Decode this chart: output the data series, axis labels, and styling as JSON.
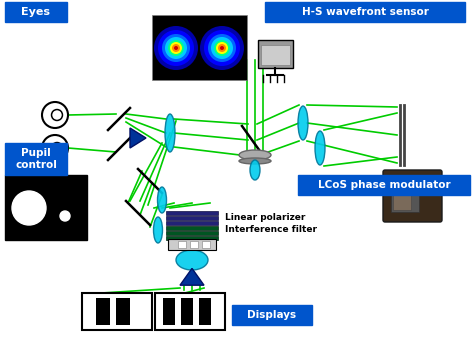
{
  "bg_color": "#ffffff",
  "label_bg": "#0055cc",
  "label_fg": "#ffffff",
  "beam_color": "#00cc00",
  "lens_color": "#00ccee",
  "mirror_color": "#444444",
  "prism_color": "#003399",
  "labels": {
    "eyes": "Eyes",
    "hs": "H-S wavefront sensor",
    "pupil": "Pupil\ncontrol",
    "lcos": "LCoS phase modulator",
    "displays": "Displays",
    "linear_pol": "Linear polarizer",
    "interference": "Interference filter"
  }
}
